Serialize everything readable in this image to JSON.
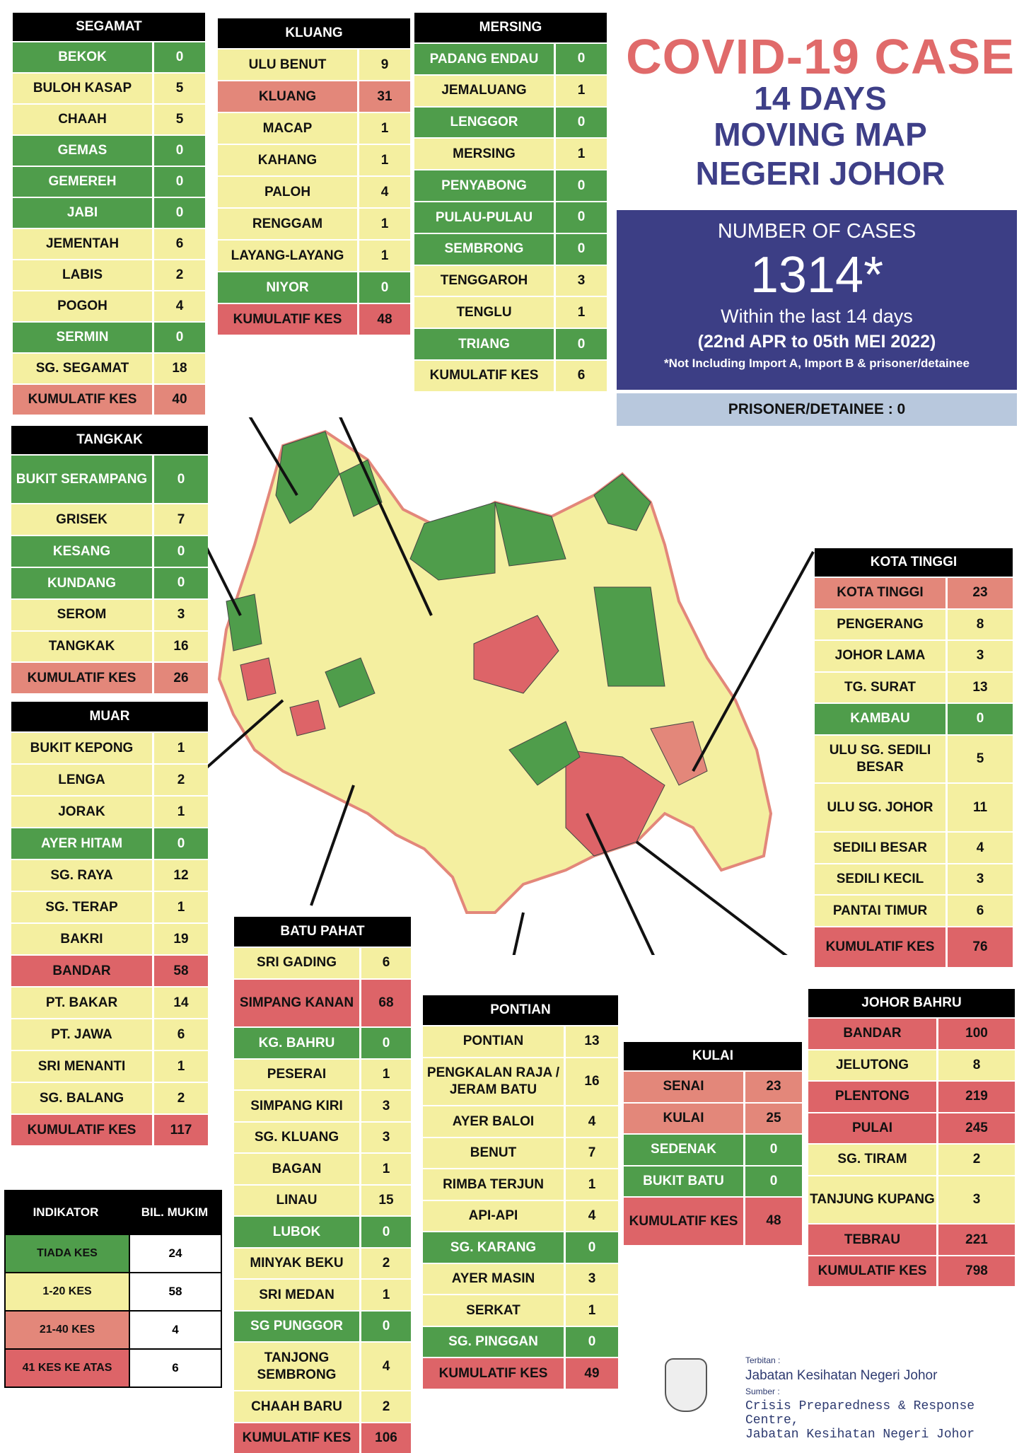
{
  "title": {
    "line1": "COVID-19 CASE",
    "line2": "14 DAYS",
    "line3": "MOVING MAP",
    "line4": "NEGERI JOHOR"
  },
  "summary": {
    "label": "NUMBER OF CASES",
    "total": "1314*",
    "within": "Within the last 14 days",
    "range": "(22nd APR to 05th MEI 2022)",
    "note": "*Not Including Import A, Import B & prisoner/detainee",
    "prisoner": "PRISONER/DETAINEE : 0"
  },
  "colors": {
    "green": "#4f9d4b",
    "yellow": "#f4efa0",
    "salmon": "#e3877a",
    "red": "#dd6468",
    "navy": "#3c3e85"
  },
  "districts": [
    {
      "name": "SEGAMAT",
      "total": "40",
      "rows": [
        {
          "n": "BEKOK",
          "v": "0",
          "c": "g"
        },
        {
          "n": "BULOH KASAP",
          "v": "5",
          "c": "y"
        },
        {
          "n": "CHAAH",
          "v": "5",
          "c": "y"
        },
        {
          "n": "GEMAS",
          "v": "0",
          "c": "g"
        },
        {
          "n": "GEMEREH",
          "v": "0",
          "c": "g"
        },
        {
          "n": "JABI",
          "v": "0",
          "c": "g"
        },
        {
          "n": "JEMENTAH",
          "v": "6",
          "c": "y"
        },
        {
          "n": "LABIS",
          "v": "2",
          "c": "y"
        },
        {
          "n": "POGOH",
          "v": "4",
          "c": "y"
        },
        {
          "n": "SERMIN",
          "v": "0",
          "c": "g"
        },
        {
          "n": "SG. SEGAMAT",
          "v": "18",
          "c": "y"
        },
        {
          "n": "KUMULATIF KES",
          "v": "40",
          "c": "s"
        }
      ]
    },
    {
      "name": "KLUANG",
      "total": "48",
      "rows": [
        {
          "n": "ULU BENUT",
          "v": "9",
          "c": "y"
        },
        {
          "n": "KLUANG",
          "v": "31",
          "c": "s"
        },
        {
          "n": "MACAP",
          "v": "1",
          "c": "y"
        },
        {
          "n": "KAHANG",
          "v": "1",
          "c": "y"
        },
        {
          "n": "PALOH",
          "v": "4",
          "c": "y"
        },
        {
          "n": "RENGGAM",
          "v": "1",
          "c": "y"
        },
        {
          "n": "LAYANG-LAYANG",
          "v": "1",
          "c": "y"
        },
        {
          "n": "NIYOR",
          "v": "0",
          "c": "g"
        },
        {
          "n": "KUMULATIF KES",
          "v": "48",
          "c": "r"
        }
      ]
    },
    {
      "name": "MERSING",
      "total": "6",
      "rows": [
        {
          "n": "PADANG ENDAU",
          "v": "0",
          "c": "g"
        },
        {
          "n": "JEMALUANG",
          "v": "1",
          "c": "y"
        },
        {
          "n": "LENGGOR",
          "v": "0",
          "c": "g"
        },
        {
          "n": "MERSING",
          "v": "1",
          "c": "y"
        },
        {
          "n": "PENYABONG",
          "v": "0",
          "c": "g"
        },
        {
          "n": "PULAU-PULAU",
          "v": "0",
          "c": "g"
        },
        {
          "n": "SEMBRONG",
          "v": "0",
          "c": "g"
        },
        {
          "n": "TENGGAROH",
          "v": "3",
          "c": "y"
        },
        {
          "n": "TENGLU",
          "v": "1",
          "c": "y"
        },
        {
          "n": "TRIANG",
          "v": "0",
          "c": "g"
        },
        {
          "n": "KUMULATIF KES",
          "v": "6",
          "c": "y"
        }
      ]
    },
    {
      "name": "TANGKAK",
      "total": "26",
      "rows": [
        {
          "n": "BUKIT SERAMPANG",
          "v": "0",
          "c": "g"
        },
        {
          "n": "GRISEK",
          "v": "7",
          "c": "y"
        },
        {
          "n": "KESANG",
          "v": "0",
          "c": "g"
        },
        {
          "n": "KUNDANG",
          "v": "0",
          "c": "g"
        },
        {
          "n": "SEROM",
          "v": "3",
          "c": "y"
        },
        {
          "n": "TANGKAK",
          "v": "16",
          "c": "y"
        },
        {
          "n": "KUMULATIF KES",
          "v": "26",
          "c": "s"
        }
      ]
    },
    {
      "name": "MUAR",
      "total": "117",
      "rows": [
        {
          "n": "BUKIT KEPONG",
          "v": "1",
          "c": "y"
        },
        {
          "n": "LENGA",
          "v": "2",
          "c": "y"
        },
        {
          "n": "JORAK",
          "v": "1",
          "c": "y"
        },
        {
          "n": "AYER HITAM",
          "v": "0",
          "c": "g"
        },
        {
          "n": "SG. RAYA",
          "v": "12",
          "c": "y"
        },
        {
          "n": "SG. TERAP",
          "v": "1",
          "c": "y"
        },
        {
          "n": "BAKRI",
          "v": "19",
          "c": "y"
        },
        {
          "n": "BANDAR",
          "v": "58",
          "c": "r"
        },
        {
          "n": "PT. BAKAR",
          "v": "14",
          "c": "y"
        },
        {
          "n": "PT. JAWA",
          "v": "6",
          "c": "y"
        },
        {
          "n": "SRI MENANTI",
          "v": "1",
          "c": "y"
        },
        {
          "n": "SG. BALANG",
          "v": "2",
          "c": "y"
        },
        {
          "n": "KUMULATIF KES",
          "v": "117",
          "c": "r"
        }
      ]
    },
    {
      "name": "BATU PAHAT",
      "total": "106",
      "rows": [
        {
          "n": "SRI GADING",
          "v": "6",
          "c": "y"
        },
        {
          "n": "SIMPANG KANAN",
          "v": "68",
          "c": "r"
        },
        {
          "n": "KG. BAHRU",
          "v": "0",
          "c": "g"
        },
        {
          "n": "PESERAI",
          "v": "1",
          "c": "y"
        },
        {
          "n": "SIMPANG KIRI",
          "v": "3",
          "c": "y"
        },
        {
          "n": "SG. KLUANG",
          "v": "3",
          "c": "y"
        },
        {
          "n": "BAGAN",
          "v": "1",
          "c": "y"
        },
        {
          "n": "LINAU",
          "v": "15",
          "c": "y"
        },
        {
          "n": "LUBOK",
          "v": "0",
          "c": "g"
        },
        {
          "n": "MINYAK BEKU",
          "v": "2",
          "c": "y"
        },
        {
          "n": "SRI MEDAN",
          "v": "1",
          "c": "y"
        },
        {
          "n": "SG PUNGGOR",
          "v": "0",
          "c": "g"
        },
        {
          "n": "TANJONG SEMBRONG",
          "v": "4",
          "c": "y"
        },
        {
          "n": "CHAAH BARU",
          "v": "2",
          "c": "y"
        },
        {
          "n": "KUMULATIF KES",
          "v": "106",
          "c": "r"
        }
      ]
    },
    {
      "name": "PONTIAN",
      "total": "49",
      "rows": [
        {
          "n": "PONTIAN",
          "v": "13",
          "c": "y"
        },
        {
          "n": "PENGKALAN RAJA / JERAM BATU",
          "v": "16",
          "c": "y"
        },
        {
          "n": "AYER BALOI",
          "v": "4",
          "c": "y"
        },
        {
          "n": "BENUT",
          "v": "7",
          "c": "y"
        },
        {
          "n": "RIMBA TERJUN",
          "v": "1",
          "c": "y"
        },
        {
          "n": "API-API",
          "v": "4",
          "c": "y"
        },
        {
          "n": "SG. KARANG",
          "v": "0",
          "c": "g"
        },
        {
          "n": "AYER MASIN",
          "v": "3",
          "c": "y"
        },
        {
          "n": "SERKAT",
          "v": "1",
          "c": "y"
        },
        {
          "n": "SG. PINGGAN",
          "v": "0",
          "c": "g"
        },
        {
          "n": "KUMULATIF KES",
          "v": "49",
          "c": "r"
        }
      ]
    },
    {
      "name": "KULAI",
      "total": "48",
      "rows": [
        {
          "n": "SENAI",
          "v": "23",
          "c": "s"
        },
        {
          "n": "KULAI",
          "v": "25",
          "c": "s"
        },
        {
          "n": "SEDENAK",
          "v": "0",
          "c": "g"
        },
        {
          "n": "BUKIT BATU",
          "v": "0",
          "c": "g"
        },
        {
          "n": "KUMULATIF KES",
          "v": "48",
          "c": "r"
        }
      ]
    },
    {
      "name": "KOTA TINGGI",
      "total": "76",
      "rows": [
        {
          "n": "KOTA TINGGI",
          "v": "23",
          "c": "s"
        },
        {
          "n": "PENGERANG",
          "v": "8",
          "c": "y"
        },
        {
          "n": "JOHOR LAMA",
          "v": "3",
          "c": "y"
        },
        {
          "n": "TG. SURAT",
          "v": "13",
          "c": "y"
        },
        {
          "n": "KAMBAU",
          "v": "0",
          "c": "g"
        },
        {
          "n": "ULU SG. SEDILI BESAR",
          "v": "5",
          "c": "y"
        },
        {
          "n": "ULU  SG. JOHOR",
          "v": "11",
          "c": "y"
        },
        {
          "n": "SEDILI BESAR",
          "v": "4",
          "c": "y"
        },
        {
          "n": "SEDILI KECIL",
          "v": "3",
          "c": "y"
        },
        {
          "n": "PANTAI TIMUR",
          "v": "6",
          "c": "y"
        },
        {
          "n": "KUMULATIF KES",
          "v": "76",
          "c": "r"
        }
      ]
    },
    {
      "name": "JOHOR BAHRU",
      "total": "798",
      "rows": [
        {
          "n": "BANDAR",
          "v": "100",
          "c": "r"
        },
        {
          "n": "JELUTONG",
          "v": "8",
          "c": "y"
        },
        {
          "n": "PLENTONG",
          "v": "219",
          "c": "r"
        },
        {
          "n": "PULAI",
          "v": "245",
          "c": "r"
        },
        {
          "n": "SG. TIRAM",
          "v": "2",
          "c": "y"
        },
        {
          "n": "TANJUNG KUPANG",
          "v": "3",
          "c": "y"
        },
        {
          "n": "TEBRAU",
          "v": "221",
          "c": "r"
        },
        {
          "n": "KUMULATIF KES",
          "v": "798",
          "c": "r"
        }
      ]
    }
  ],
  "legend": {
    "h1": "INDIKATOR",
    "h2": "BIL. MUKIM",
    "rows": [
      {
        "label": "TIADA KES",
        "count": "24",
        "c": "g"
      },
      {
        "label": "1-20 KES",
        "count": "58",
        "c": "y"
      },
      {
        "label": "21-40 KES",
        "count": "4",
        "c": "s"
      },
      {
        "label": "41 KES KE ATAS",
        "count": "6",
        "c": "r"
      }
    ]
  },
  "footer": {
    "terbitan": "Terbitan :",
    "publisher": "Jabatan Kesihatan Negeri Johor",
    "sumber": "Sumber :",
    "source1": "Crisis Preparedness & Response Centre,",
    "source2": "Jabatan Kesihatan Negeri Johor"
  }
}
